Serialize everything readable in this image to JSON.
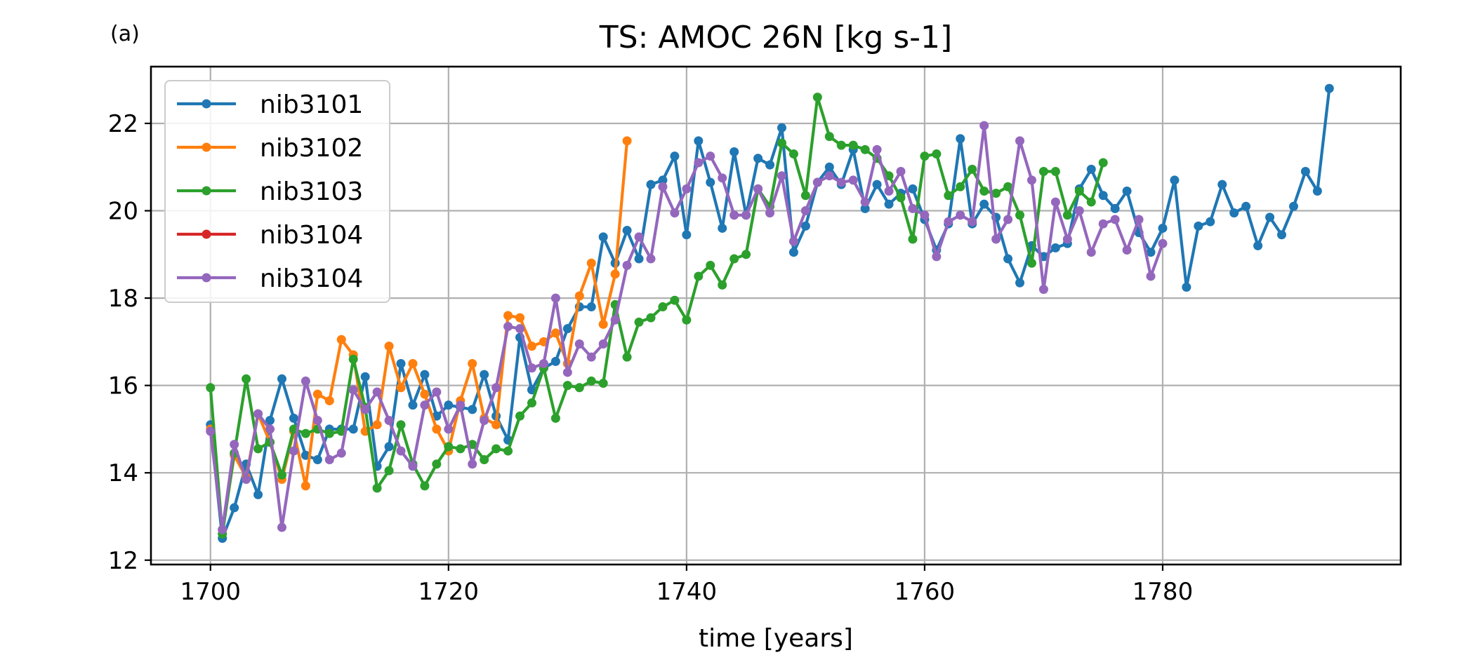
{
  "panel_label": "(a)",
  "chart_data": {
    "type": "line",
    "title": "TS: AMOC 26N [kg s-1]",
    "xlabel": "time [years]",
    "ylabel": "",
    "xlim": [
      1695,
      1800
    ],
    "ylim": [
      11.9,
      23.3
    ],
    "xticks": [
      1700,
      1720,
      1740,
      1760,
      1780
    ],
    "yticks": [
      12,
      14,
      16,
      18,
      20,
      22
    ],
    "grid": true,
    "legend_position": "upper-left",
    "series": [
      {
        "name": "nib3101",
        "color": "#1f77b4",
        "x_start": 1700,
        "values": [
          15.1,
          12.5,
          13.2,
          14.2,
          13.5,
          15.2,
          16.15,
          15.25,
          14.4,
          14.3,
          15.0,
          15.0,
          15.0,
          16.2,
          14.15,
          14.6,
          16.5,
          15.55,
          16.25,
          15.3,
          15.55,
          15.5,
          15.45,
          16.25,
          15.3,
          14.75,
          17.1,
          15.9,
          16.4,
          16.55,
          17.3,
          17.8,
          17.8,
          19.4,
          18.8,
          19.55,
          18.9,
          20.6,
          20.7,
          21.25,
          19.45,
          21.6,
          20.65,
          19.6,
          21.35,
          19.9,
          21.2,
          21.05,
          21.9,
          19.05,
          19.65,
          20.65,
          21.0,
          20.6,
          21.4,
          20.05,
          20.6,
          20.15,
          20.4,
          20.5,
          19.8,
          19.1,
          19.7,
          21.65,
          19.7,
          20.15,
          19.85,
          18.9,
          18.35,
          19.2,
          18.95,
          19.15,
          19.25,
          20.5,
          20.95,
          20.35,
          20.05,
          20.45,
          19.5,
          19.05,
          19.6,
          20.7,
          18.25,
          19.65,
          19.75,
          20.6,
          19.95,
          20.1,
          19.2,
          19.85,
          19.45,
          20.1,
          20.9,
          20.45,
          22.8
        ]
      },
      {
        "name": "nib3102",
        "color": "#ff7f0e",
        "x_start": 1700,
        "values": [
          15.0,
          12.7,
          14.4,
          13.9,
          15.35,
          14.7,
          13.85,
          14.95,
          13.7,
          15.8,
          15.65,
          17.05,
          16.7,
          14.95,
          15.1,
          16.9,
          15.95,
          16.5,
          15.8,
          15.0,
          14.5,
          15.65,
          16.5,
          15.25,
          15.1,
          17.6,
          17.55,
          16.9,
          17.0,
          17.2,
          16.5,
          18.05,
          18.8,
          17.4,
          18.55,
          21.6
        ]
      },
      {
        "name": "nib3103",
        "color": "#2ca02c",
        "x_start": 1700,
        "values": [
          15.95,
          12.6,
          14.45,
          16.15,
          14.55,
          14.7,
          13.95,
          15.0,
          14.9,
          15.0,
          14.9,
          14.95,
          16.6,
          15.5,
          13.65,
          14.05,
          15.1,
          14.2,
          13.7,
          14.2,
          14.6,
          14.55,
          14.65,
          14.3,
          14.55,
          14.5,
          15.3,
          15.6,
          16.4,
          15.25,
          16.0,
          15.95,
          16.1,
          16.05,
          17.85,
          16.65,
          17.45,
          17.55,
          17.8,
          17.95,
          17.5,
          18.5,
          18.75,
          18.3,
          18.9,
          19.0,
          20.5,
          20.1,
          21.55,
          21.3,
          20.35,
          22.6,
          21.7,
          21.5,
          21.5,
          21.4,
          21.2,
          20.8,
          20.3,
          19.35,
          21.25,
          21.3,
          20.35,
          20.55,
          20.95,
          20.45,
          20.4,
          20.55,
          19.9,
          18.8,
          20.9,
          20.9,
          19.9,
          20.45,
          20.2,
          21.1
        ]
      },
      {
        "name": "nib3104",
        "color": "#d62728",
        "x_start": 1700,
        "values": []
      },
      {
        "name": "nib3104",
        "color": "#9467bd",
        "x_start": 1700,
        "values": [
          14.95,
          12.7,
          14.65,
          13.85,
          15.35,
          15.0,
          12.75,
          14.5,
          16.1,
          15.2,
          14.3,
          14.45,
          15.9,
          15.45,
          15.85,
          15.2,
          14.5,
          14.15,
          15.55,
          15.85,
          15.0,
          15.55,
          14.2,
          15.2,
          15.95,
          17.35,
          17.3,
          16.4,
          16.5,
          18.0,
          16.3,
          16.95,
          16.65,
          16.95,
          17.5,
          18.75,
          19.4,
          18.9,
          20.55,
          19.95,
          20.5,
          21.1,
          21.25,
          20.75,
          19.9,
          19.9,
          20.5,
          19.95,
          20.8,
          19.3,
          20.0,
          20.65,
          20.8,
          20.65,
          20.7,
          20.2,
          21.4,
          20.45,
          20.9,
          20.05,
          19.9,
          18.95,
          19.75,
          19.9,
          19.75,
          21.95,
          19.35,
          19.8,
          21.6,
          20.7,
          18.2,
          20.2,
          19.35,
          20.0,
          19.05,
          19.7,
          19.8,
          19.1,
          19.8,
          18.5,
          19.25
        ]
      }
    ]
  }
}
